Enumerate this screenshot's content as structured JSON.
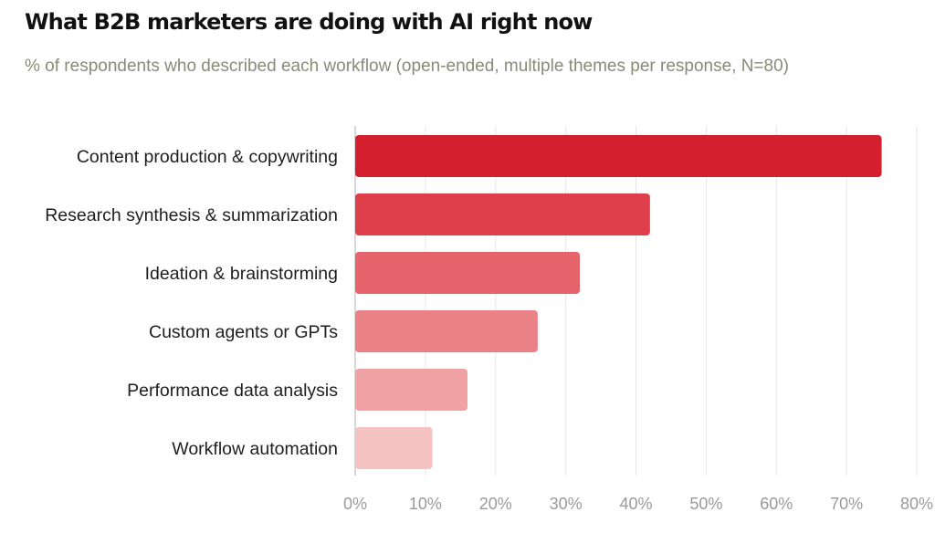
{
  "chart_data": {
    "type": "bar",
    "orientation": "horizontal",
    "title": "What B2B marketers are doing with AI right now",
    "subtitle": "% of respondents who described each workflow (open-ended, multiple themes per response, N=80)",
    "categories": [
      "Content production & copywriting",
      "Research synthesis & summarization",
      "Ideation & brainstorming",
      "Custom agents or GPTs",
      "Performance data analysis",
      "Workflow automation"
    ],
    "values": [
      75,
      42,
      32,
      26,
      16,
      11
    ],
    "unit": "%",
    "xlim": [
      0,
      80
    ],
    "xticks": [
      "0%",
      "10%",
      "20%",
      "30%",
      "40%",
      "50%",
      "60%",
      "70%",
      "80%"
    ],
    "grid": "vertical",
    "bar_colors": [
      "#d41f2e",
      "#df3f4a",
      "#e5646b",
      "#ea8186",
      "#f0a1a4",
      "#f5c2c4"
    ],
    "grid_color": "#e6e6e6",
    "axis_color": "#cccccc"
  }
}
